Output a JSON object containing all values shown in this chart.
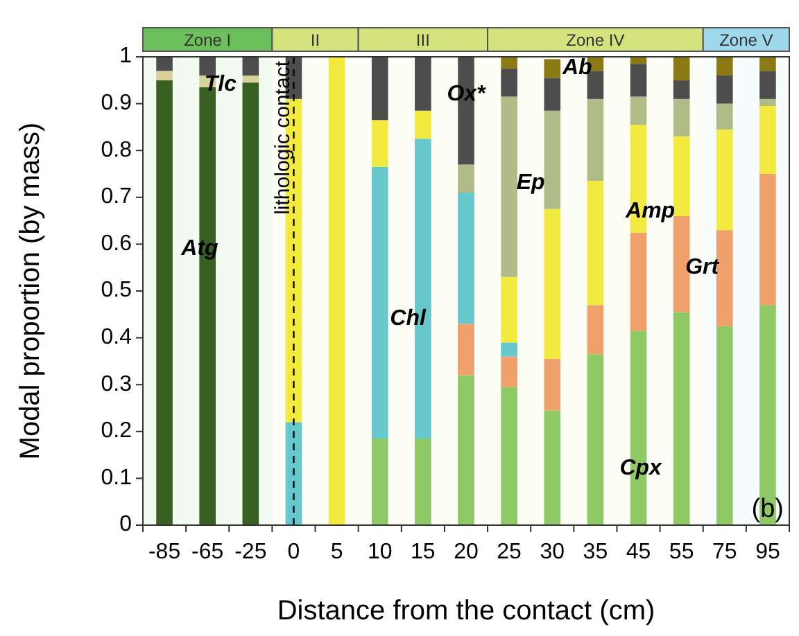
{
  "chart_data": {
    "type": "bar",
    "stacked": true,
    "xlabel": "Distance from the contact (cm)",
    "ylabel": "Modal proportion (by mass)",
    "categories": [
      "-85",
      "-65",
      "-25",
      "0",
      "5",
      "10",
      "15",
      "20",
      "25",
      "30",
      "35",
      "45",
      "55",
      "75",
      "95"
    ],
    "ylim": [
      0,
      1
    ],
    "yticks": [
      0,
      0.1,
      0.2,
      0.3,
      0.4,
      0.5,
      0.6,
      0.7,
      0.8,
      0.9,
      1
    ],
    "grid": false,
    "series": [
      {
        "color": "#376022",
        "values": [
          0.95,
          0.935,
          0.945,
          null,
          null,
          null,
          null,
          null,
          null,
          null,
          null,
          null,
          null,
          null,
          null
        ]
      },
      {
        "color": "#8fc965",
        "values": [
          null,
          null,
          null,
          null,
          null,
          0.185,
          0.185,
          0.32,
          0.295,
          0.245,
          0.365,
          0.415,
          0.455,
          0.425,
          0.47
        ]
      },
      {
        "color": "#f0a06a",
        "values": [
          null,
          null,
          null,
          null,
          null,
          null,
          null,
          0.11,
          0.065,
          0.11,
          0.105,
          0.21,
          0.205,
          0.205,
          0.28
        ]
      },
      {
        "color": "#66c8cc",
        "values": [
          null,
          null,
          null,
          0.22,
          null,
          0.58,
          0.64,
          0.28,
          0.03,
          null,
          null,
          null,
          null,
          null,
          null
        ]
      },
      {
        "color": "#f2ea3e",
        "values": [
          null,
          null,
          null,
          0.69,
          1,
          0.1,
          0.06,
          null,
          0.14,
          0.32,
          0.265,
          0.23,
          0.17,
          0.215,
          0.145
        ]
      },
      {
        "color": "#b0bc88",
        "values": [
          null,
          null,
          null,
          null,
          null,
          null,
          null,
          0.06,
          0.385,
          0.21,
          0.175,
          0.06,
          0.08,
          0.055,
          0.015
        ]
      },
      {
        "color": "#d9d19a",
        "values": [
          0.02,
          0.025,
          0.015,
          null,
          null,
          null,
          null,
          null,
          null,
          null,
          null,
          null,
          null,
          null,
          null
        ]
      },
      {
        "color": "#4d4d4d",
        "values": [
          0.03,
          0.04,
          0.04,
          0.09,
          null,
          0.135,
          0.115,
          0.23,
          0.06,
          0.07,
          0.06,
          0.07,
          0.04,
          0.06,
          0.06
        ]
      },
      {
        "color": "#8b7a14",
        "values": [
          null,
          null,
          null,
          null,
          null,
          null,
          null,
          null,
          0.025,
          0.04,
          0.03,
          0.015,
          0.05,
          0.04,
          0.03
        ]
      }
    ],
    "ref_lines": [
      {
        "axis": "x",
        "value": "0",
        "label": "lithologic contact",
        "line_style": "dashed",
        "color": "#000000"
      }
    ],
    "bands": [
      {
        "axis": "x",
        "from": "-85",
        "to": "-25",
        "label": "Zone I",
        "color": "#6cbf5a"
      },
      {
        "axis": "x",
        "from": "0",
        "to": "5",
        "label": "II",
        "color": "#d5e37e"
      },
      {
        "axis": "x",
        "from": "10",
        "to": "20",
        "label": "III",
        "color": "#d5e37e"
      },
      {
        "axis": "x",
        "from": "25",
        "to": "55",
        "label": "Zone IV",
        "color": "#d5e37e"
      },
      {
        "axis": "x",
        "from": "75",
        "to": "95",
        "label": "Zone V",
        "color": "#9fd8ea"
      }
    ],
    "annotations": [
      "Atg",
      "Tlc",
      "Ox*",
      "Chl",
      "Ep",
      "Ab",
      "Amp",
      "Grt",
      "Cpx",
      "(b)"
    ]
  }
}
